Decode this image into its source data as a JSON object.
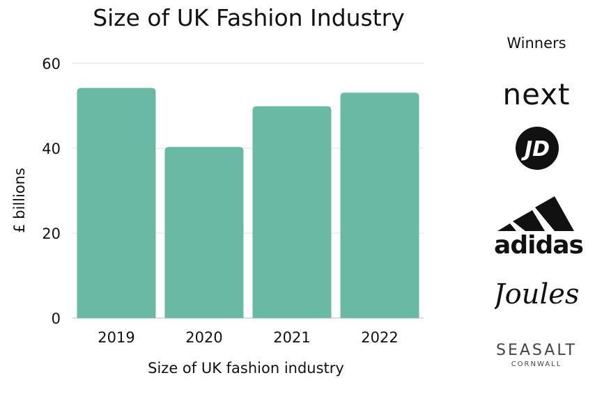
{
  "chart_data": {
    "type": "bar",
    "title": "Size of UK Fashion Industry",
    "xlabel": "Size of UK fashion industry",
    "ylabel": "£ billions",
    "categories": [
      "2019",
      "2020",
      "2021",
      "2022"
    ],
    "values": [
      54.2,
      40.3,
      49.9,
      53.1
    ],
    "ylim": [
      0,
      60
    ],
    "yticks": [
      0,
      20,
      40,
      60
    ],
    "grid": true,
    "bar_color": "#6ab9a5"
  },
  "winners": {
    "title": "Winners",
    "logos": [
      {
        "name": "next-logo",
        "text": "next"
      },
      {
        "name": "jd-logo",
        "text": "JD"
      },
      {
        "name": "adidas-logo",
        "text": "adidas"
      },
      {
        "name": "joules-logo",
        "text": "Joules"
      },
      {
        "name": "seasalt-logo",
        "text": "SEASALT",
        "subtext": "CORNWALL"
      }
    ]
  }
}
